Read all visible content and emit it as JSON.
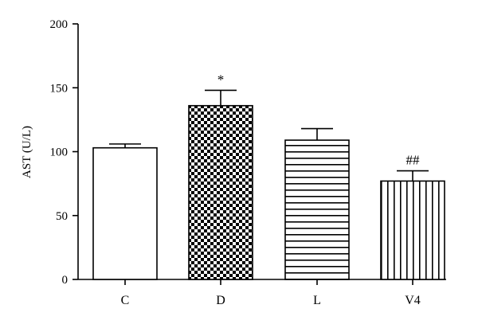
{
  "chart_data": {
    "type": "bar",
    "title": "",
    "xlabel": "",
    "ylabel": "AST (U/L)",
    "ylim": [
      0,
      200
    ],
    "yticks": [
      0,
      50,
      100,
      150,
      200
    ],
    "grid": false,
    "categories": [
      "C",
      "D",
      "L",
      "V4"
    ],
    "values": [
      103,
      136,
      109,
      77
    ],
    "error_upper": [
      106,
      148,
      118,
      85
    ],
    "annotations": [
      "",
      "*",
      "",
      "##"
    ],
    "fill_patterns": [
      "none",
      "checkerboard",
      "horizontal-lines",
      "vertical-lines"
    ],
    "colors": {
      "bar_stroke": "#000000",
      "bar_fill": "#ffffff",
      "pattern": "#000000"
    }
  }
}
